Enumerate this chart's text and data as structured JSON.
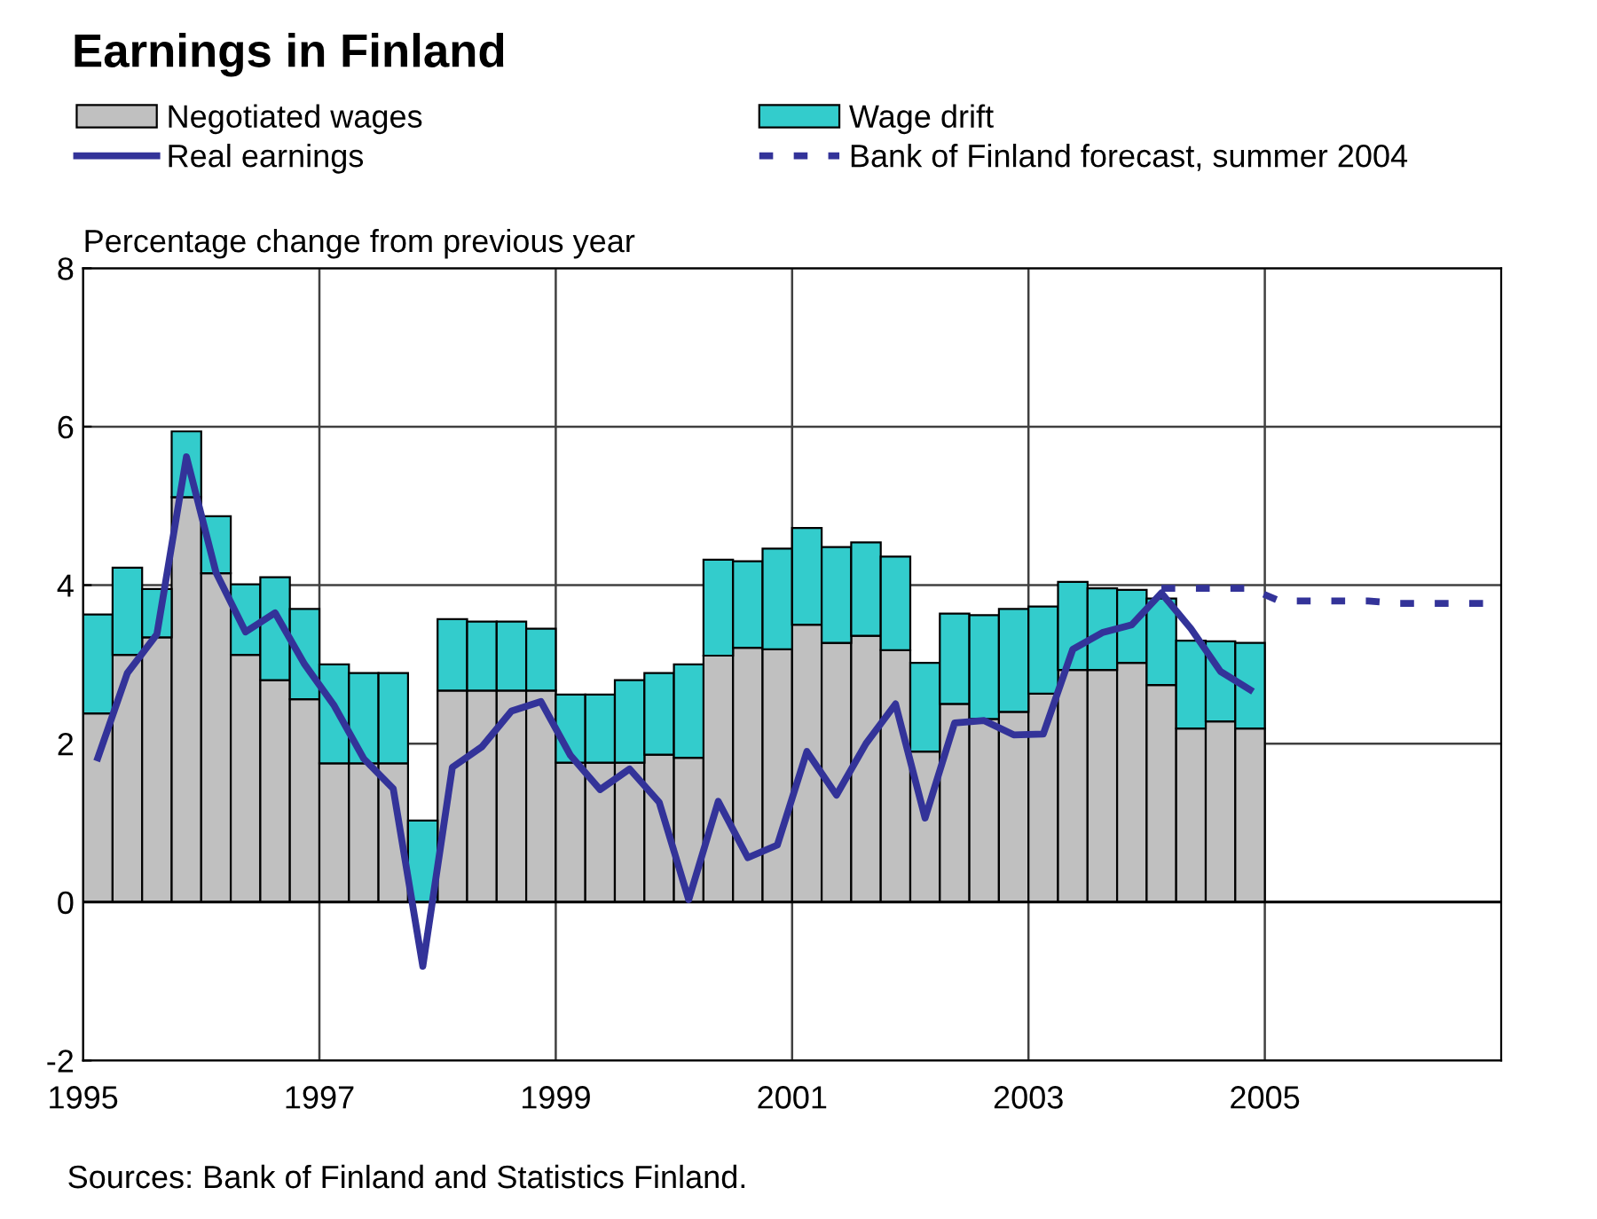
{
  "chart_data": {
    "type": "bar",
    "title": "Earnings in Finland",
    "ylabel": "Percentage change from previous year",
    "x": [
      1995.125,
      1995.375,
      1995.625,
      1995.875,
      1996.125,
      1996.375,
      1996.625,
      1996.875,
      1997.125,
      1997.375,
      1997.625,
      1997.875,
      1998.125,
      1998.375,
      1998.625,
      1998.875,
      1999.125,
      1999.375,
      1999.625,
      1999.875,
      2000.125,
      2000.375,
      2000.625,
      2000.875,
      2001.125,
      2001.375,
      2001.625,
      2001.875,
      2002.125,
      2002.375,
      2002.625,
      2002.875,
      2003.125,
      2003.375,
      2003.625,
      2003.875,
      2004.125,
      2004.375,
      2004.625,
      2004.875
    ],
    "stacked": true,
    "series": [
      {
        "name": "Negotiated wages",
        "color": "#c0c0c0",
        "values": [
          2.38,
          3.12,
          3.34,
          5.11,
          4.15,
          3.12,
          2.8,
          2.56,
          1.75,
          1.75,
          1.75,
          0,
          2.67,
          2.67,
          2.67,
          2.67,
          1.76,
          1.76,
          1.76,
          1.86,
          1.82,
          3.11,
          3.21,
          3.19,
          3.5,
          3.27,
          3.36,
          3.18,
          1.9,
          2.5,
          2.31,
          2.4,
          2.63,
          2.93,
          2.93,
          3.02,
          2.74,
          2.19,
          2.28,
          2.19
        ]
      },
      {
        "name": "Wage drift",
        "color": "#33cccc",
        "values": [
          1.25,
          1.1,
          0.61,
          0.83,
          0.72,
          0.89,
          1.3,
          1.14,
          1.25,
          1.14,
          1.14,
          1.03,
          0.9,
          0.87,
          0.87,
          0.78,
          0.86,
          0.86,
          1.04,
          1.03,
          1.18,
          1.21,
          1.09,
          1.27,
          1.22,
          1.21,
          1.18,
          1.18,
          1.12,
          1.14,
          1.31,
          1.3,
          1.1,
          1.11,
          1.03,
          0.92,
          1.09,
          1.11,
          1.01,
          1.08
        ]
      },
      {
        "name": "Real earnings",
        "type": "line",
        "color": "#333399",
        "line_style": "solid",
        "values": [
          1.82,
          2.89,
          3.38,
          5.62,
          4.16,
          3.41,
          3.65,
          3.0,
          2.48,
          1.81,
          1.43,
          -0.81,
          1.7,
          1.96,
          2.41,
          2.53,
          1.85,
          1.42,
          1.68,
          1.26,
          0.03,
          1.27,
          0.56,
          0.72,
          1.9,
          1.35,
          2.0,
          2.5,
          1.06,
          2.26,
          2.29,
          2.11,
          2.12,
          3.19,
          3.4,
          3.5,
          3.9,
          3.45,
          2.91,
          2.68
        ]
      },
      {
        "name": "Bank of Finland forecast, summer 2004",
        "type": "line",
        "color": "#333399",
        "line_style": "dashed",
        "x": [
          2004.125,
          2004.875,
          2005.125,
          2005.875,
          2006.125,
          2006.875
        ],
        "values": [
          3.96,
          3.96,
          3.8,
          3.8,
          3.77,
          3.77
        ]
      }
    ],
    "xlim": [
      1995,
      2007
    ],
    "xticks": [
      1995,
      1997,
      1999,
      2001,
      2003,
      2005
    ],
    "ylim": [
      -2,
      8
    ],
    "yticks": [
      -2,
      0,
      2,
      4,
      6,
      8
    ],
    "grid": true,
    "legend": "top",
    "annotations": [
      "Sources: Bank of Finland and Statistics Finland."
    ]
  }
}
